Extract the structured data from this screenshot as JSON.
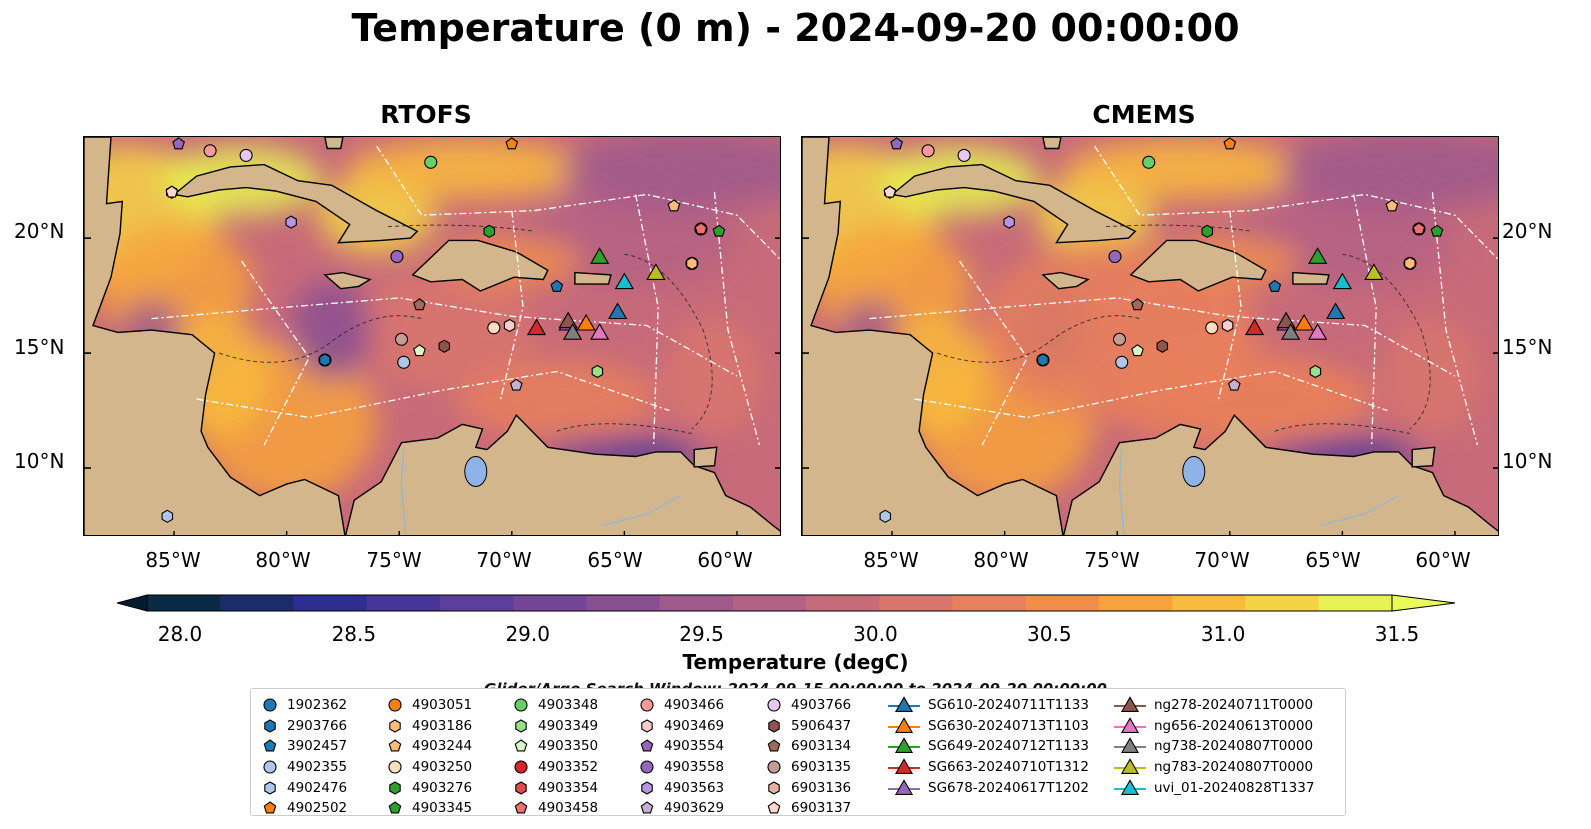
{
  "title": "Temperature (0 m) - 2024-09-20 00:00:00",
  "panels": [
    {
      "title": "RTOFS"
    },
    {
      "title": "CMEMS"
    }
  ],
  "lat_labels": [
    "20°N",
    "15°N",
    "10°N"
  ],
  "lon_labels": [
    "85°W",
    "80°W",
    "75°W",
    "70°W",
    "65°W",
    "60°W"
  ],
  "colorbar": {
    "label": "Temperature (degC)",
    "ticks": [
      "28.0",
      "28.5",
      "29.0",
      "29.5",
      "30.0",
      "30.5",
      "31.0",
      "31.5"
    ],
    "colors": [
      "#0b2a45",
      "#1a2c6b",
      "#2d2e8f",
      "#46369a",
      "#5c3e9c",
      "#734698",
      "#8a4f93",
      "#9f598c",
      "#b46284",
      "#c76b7a",
      "#d8756c",
      "#e7805c",
      "#f18f4a",
      "#f7a23d",
      "#f9bb3d",
      "#f4d344",
      "#e5f251"
    ],
    "over_color": "#e8fb5a",
    "under_color": "#051c2e"
  },
  "legend": {
    "title": "Glider/Argo Search Window: 2024-09-15 00:00:00 to 2024-09-20 00:00:00",
    "columns": [
      [
        {
          "label": "1902362",
          "marker": "circle",
          "color": "#1f77b4"
        },
        {
          "label": "2903766",
          "marker": "hexagon",
          "color": "#1f77b4"
        },
        {
          "label": "3902457",
          "marker": "pentagon",
          "color": "#1f77b4"
        },
        {
          "label": "4902355",
          "marker": "circle",
          "color": "#aec7e8"
        },
        {
          "label": "4902476",
          "marker": "hexagon",
          "color": "#aec7e8"
        },
        {
          "label": "4902502",
          "marker": "pentagon",
          "color": "#ff7f0e"
        }
      ],
      [
        {
          "label": "4903051",
          "marker": "circle",
          "color": "#ff7f0e"
        },
        {
          "label": "4903186",
          "marker": "hexagon",
          "color": "#ffbb78"
        },
        {
          "label": "4903244",
          "marker": "pentagon",
          "color": "#ffbb78"
        },
        {
          "label": "4903250",
          "marker": "circle",
          "color": "#ffdfc0"
        },
        {
          "label": "4903276",
          "marker": "hexagon",
          "color": "#2ca02c"
        },
        {
          "label": "4903345",
          "marker": "pentagon",
          "color": "#2ca02c"
        }
      ],
      [
        {
          "label": "4903348",
          "marker": "circle",
          "color": "#66d066"
        },
        {
          "label": "4903349",
          "marker": "hexagon",
          "color": "#98df8a"
        },
        {
          "label": "4903350",
          "marker": "pentagon",
          "color": "#d8f8c8"
        },
        {
          "label": "4903352",
          "marker": "circle",
          "color": "#d62728"
        },
        {
          "label": "4903354",
          "marker": "hexagon",
          "color": "#e04a4a"
        },
        {
          "label": "4903458",
          "marker": "pentagon",
          "color": "#f07070"
        }
      ],
      [
        {
          "label": "4903466",
          "marker": "circle",
          "color": "#ff9896"
        },
        {
          "label": "4903469",
          "marker": "hexagon",
          "color": "#ffcccc"
        },
        {
          "label": "4903554",
          "marker": "pentagon",
          "color": "#9467bd"
        },
        {
          "label": "4903558",
          "marker": "circle",
          "color": "#9467bd"
        },
        {
          "label": "4903563",
          "marker": "hexagon",
          "color": "#b895e0"
        },
        {
          "label": "4903629",
          "marker": "pentagon",
          "color": "#c5b0d5"
        }
      ],
      [
        {
          "label": "4903766",
          "marker": "circle",
          "color": "#e8c8f0"
        },
        {
          "label": "5906437",
          "marker": "hexagon",
          "color": "#8c564b"
        },
        {
          "label": "6903134",
          "marker": "pentagon",
          "color": "#a06a5a"
        },
        {
          "label": "6903135",
          "marker": "circle",
          "color": "#c49c94"
        },
        {
          "label": "6903136",
          "marker": "hexagon",
          "color": "#e6b0a0"
        },
        {
          "label": "6903137",
          "marker": "pentagon",
          "color": "#ffd8c8"
        }
      ],
      [
        {
          "label": "SG610-20240711T1133",
          "marker": "triangle",
          "color": "#1f77b4"
        },
        {
          "label": "SG630-20240713T1103",
          "marker": "triangle",
          "color": "#ff7f0e"
        },
        {
          "label": "SG649-20240712T1133",
          "marker": "triangle",
          "color": "#2ca02c"
        },
        {
          "label": "SG663-20240710T1312",
          "marker": "triangle",
          "color": "#d62728"
        },
        {
          "label": "SG678-20240617T1202",
          "marker": "triangle",
          "color": "#9467bd"
        }
      ],
      [
        {
          "label": "ng278-20240711T0000",
          "marker": "triangle",
          "color": "#8c564b"
        },
        {
          "label": "ng656-20240613T0000",
          "marker": "triangle",
          "color": "#e377c2"
        },
        {
          "label": "ng738-20240807T0000",
          "marker": "triangle",
          "color": "#7f7f7f"
        },
        {
          "label": "ng783-20240807T0000",
          "marker": "triangle",
          "color": "#bcbd22"
        },
        {
          "label": "uvi_01-20240828T1337",
          "marker": "triangle",
          "color": "#17becf"
        }
      ]
    ]
  },
  "markers": [
    {
      "id": "1902362",
      "lon": -78.3,
      "lat": 14.7
    },
    {
      "id": "2903766",
      "lon": -78.3,
      "lat": 14.7
    },
    {
      "id": "3902457",
      "lon": -68.0,
      "lat": 17.9
    },
    {
      "id": "4902355",
      "lon": -74.8,
      "lat": 14.6
    },
    {
      "id": "4902476",
      "lon": -85.3,
      "lat": 7.9
    },
    {
      "id": "4902502",
      "lon": -70.0,
      "lat": 24.1
    },
    {
      "id": "4903051",
      "lon": -62.0,
      "lat": 18.9
    },
    {
      "id": "4903186",
      "lon": -62.0,
      "lat": 18.9
    },
    {
      "id": "4903244",
      "lon": -62.8,
      "lat": 21.4
    },
    {
      "id": "4903250",
      "lon": -70.8,
      "lat": 16.1
    },
    {
      "id": "4903276",
      "lon": -71.0,
      "lat": 20.3
    },
    {
      "id": "4903345",
      "lon": -60.8,
      "lat": 20.3
    },
    {
      "id": "4903348",
      "lon": -73.6,
      "lat": 23.3
    },
    {
      "id": "4903349",
      "lon": -66.2,
      "lat": 14.2
    },
    {
      "id": "4903350",
      "lon": -74.1,
      "lat": 15.1
    },
    {
      "id": "4903352",
      "lon": -61.6,
      "lat": 20.4
    },
    {
      "id": "4903354",
      "lon": -61.6,
      "lat": 20.4
    },
    {
      "id": "4903458",
      "lon": -61.6,
      "lat": 20.4
    },
    {
      "id": "4903466",
      "lon": -83.4,
      "lat": 23.8
    },
    {
      "id": "4903469",
      "lon": -70.1,
      "lat": 16.2
    },
    {
      "id": "4903554",
      "lon": -84.8,
      "lat": 24.1
    },
    {
      "id": "4903558",
      "lon": -75.1,
      "lat": 19.2
    },
    {
      "id": "4903563",
      "lon": -79.8,
      "lat": 20.7
    },
    {
      "id": "4903629",
      "lon": -69.8,
      "lat": 13.6
    },
    {
      "id": "4903766",
      "lon": -81.8,
      "lat": 23.6
    },
    {
      "id": "5906437",
      "lon": -73.0,
      "lat": 15.3
    },
    {
      "id": "6903134",
      "lon": -74.1,
      "lat": 17.1
    },
    {
      "id": "6903135",
      "lon": -74.9,
      "lat": 15.6
    },
    {
      "id": "6903136",
      "lon": -85.1,
      "lat": 22.0
    },
    {
      "id": "6903137",
      "lon": -85.1,
      "lat": 22.0
    },
    {
      "id": "SG610-20240711T1133",
      "lon": -65.3,
      "lat": 16.8
    },
    {
      "id": "SG630-20240713T1103",
      "lon": -66.7,
      "lat": 16.3
    },
    {
      "id": "SG649-20240712T1133",
      "lon": -66.1,
      "lat": 19.2
    },
    {
      "id": "SG663-20240710T1312",
      "lon": -68.9,
      "lat": 16.1
    },
    {
      "id": "SG678-20240617T1202",
      "lon": -67.5,
      "lat": 16.3
    },
    {
      "id": "ng278-20240711T0000",
      "lon": -67.5,
      "lat": 16.4
    },
    {
      "id": "ng656-20240613T0000",
      "lon": -66.1,
      "lat": 15.9
    },
    {
      "id": "ng738-20240807T0000",
      "lon": -67.3,
      "lat": 15.9
    },
    {
      "id": "ng783-20240807T0000",
      "lon": -63.6,
      "lat": 18.5
    },
    {
      "id": "uvi_01-20240828T1337",
      "lon": -65.0,
      "lat": 18.1
    }
  ]
}
